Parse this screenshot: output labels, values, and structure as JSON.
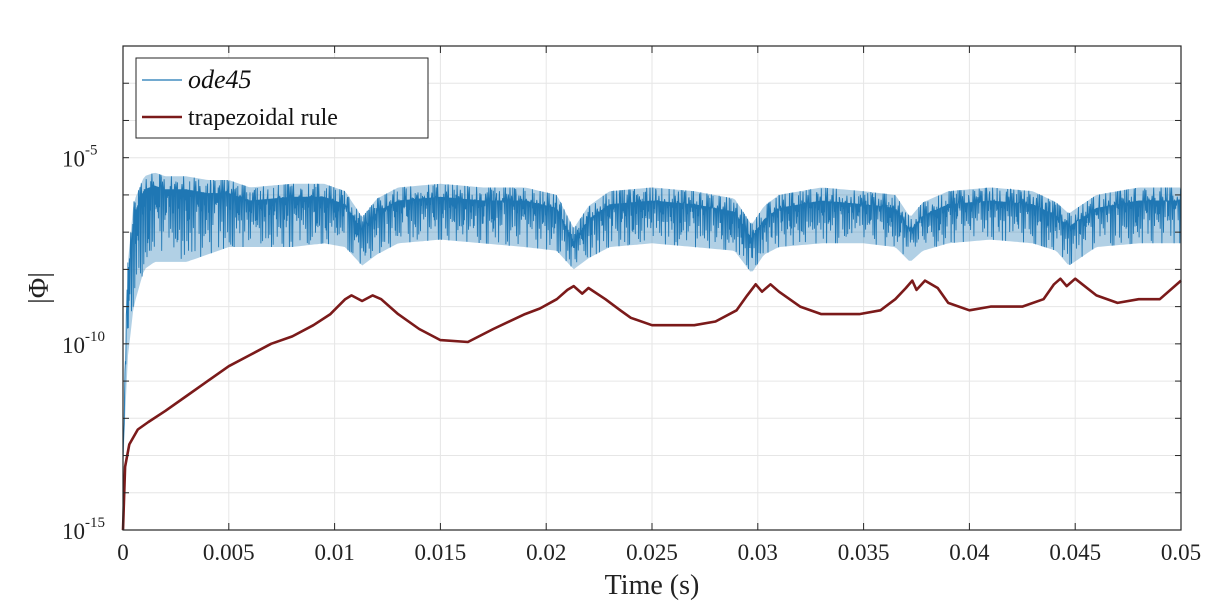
{
  "chart_data": {
    "type": "line",
    "title": "",
    "xlabel": "Time (s)",
    "ylabel": "|Φ|",
    "xlim": [
      0,
      0.05
    ],
    "ylim_log10": [
      -15,
      -2
    ],
    "yscale": "log",
    "grid": true,
    "legend_position": "top-left",
    "x_ticks": [
      0,
      0.005,
      0.01,
      0.015,
      0.02,
      0.025,
      0.03,
      0.035,
      0.04,
      0.045,
      0.05
    ],
    "x_tick_labels": [
      "0",
      "0.005",
      "0.01",
      "0.015",
      "0.02",
      "0.025",
      "0.03",
      "0.035",
      "0.04",
      "0.045",
      "0.05"
    ],
    "y_ticks": [
      {
        "base": "10",
        "exp": "-5",
        "value_log10": -5
      },
      {
        "base": "10",
        "exp": "-10",
        "value_log10": -10
      },
      {
        "base": "10",
        "exp": "-15",
        "value_log10": -15
      }
    ],
    "series": [
      {
        "name": "ode45",
        "color": "#1f77b4",
        "style": "oscillating",
        "envelope_x": [
          0,
          0.0002,
          0.0005,
          0.001,
          0.0015,
          0.002,
          0.003,
          0.004,
          0.005,
          0.006,
          0.008,
          0.0095,
          0.0105,
          0.0113,
          0.012,
          0.013,
          0.015,
          0.017,
          0.019,
          0.0205,
          0.0213,
          0.022,
          0.023,
          0.025,
          0.027,
          0.0289,
          0.0297,
          0.0303,
          0.031,
          0.033,
          0.035,
          0.0365,
          0.0372,
          0.0378,
          0.039,
          0.041,
          0.043,
          0.0441,
          0.0447,
          0.046,
          0.048,
          0.05
        ],
        "envelope_upper_log10": [
          -13,
          -8,
          -6.2,
          -5.5,
          -5.4,
          -5.5,
          -5.5,
          -5.6,
          -5.6,
          -5.8,
          -5.7,
          -5.7,
          -5.9,
          -6.6,
          -6.1,
          -5.8,
          -5.7,
          -5.8,
          -5.8,
          -6.0,
          -6.9,
          -6.3,
          -5.9,
          -5.8,
          -5.9,
          -6.1,
          -6.8,
          -6.3,
          -6.0,
          -5.8,
          -5.9,
          -6.0,
          -6.6,
          -6.2,
          -5.9,
          -5.8,
          -5.9,
          -6.2,
          -6.5,
          -6.0,
          -5.8,
          -5.8
        ],
        "envelope_lower_log10": [
          -13.5,
          -10.5,
          -9,
          -8,
          -7.8,
          -7.8,
          -7.8,
          -7.6,
          -7.4,
          -7.4,
          -7.4,
          -7.3,
          -7.4,
          -7.9,
          -7.6,
          -7.3,
          -7.2,
          -7.3,
          -7.4,
          -7.5,
          -8.0,
          -7.7,
          -7.4,
          -7.3,
          -7.4,
          -7.5,
          -8.1,
          -7.6,
          -7.4,
          -7.3,
          -7.3,
          -7.4,
          -7.8,
          -7.5,
          -7.3,
          -7.2,
          -7.3,
          -7.5,
          -7.9,
          -7.4,
          -7.3,
          -7.3
        ]
      },
      {
        "name": "trapezoidal rule",
        "color": "#7b1a1a",
        "style": "smooth",
        "x": [
          0,
          0.0001,
          0.0003,
          0.0007,
          0.0012,
          0.002,
          0.003,
          0.004,
          0.005,
          0.006,
          0.007,
          0.008,
          0.009,
          0.0098,
          0.0105,
          0.0108,
          0.0113,
          0.0118,
          0.0122,
          0.013,
          0.014,
          0.015,
          0.0163,
          0.0175,
          0.019,
          0.0197,
          0.0205,
          0.021,
          0.0213,
          0.0217,
          0.022,
          0.0228,
          0.0235,
          0.024,
          0.025,
          0.026,
          0.027,
          0.028,
          0.029,
          0.0295,
          0.0299,
          0.0302,
          0.0306,
          0.031,
          0.032,
          0.033,
          0.034,
          0.0348,
          0.0358,
          0.0365,
          0.037,
          0.0373,
          0.0375,
          0.0379,
          0.0385,
          0.039,
          0.04,
          0.041,
          0.0425,
          0.0435,
          0.044,
          0.0443,
          0.0446,
          0.045,
          0.046,
          0.047,
          0.048,
          0.049,
          0.05
        ],
        "y_log10": [
          -15,
          -13.3,
          -12.7,
          -12.3,
          -12.1,
          -11.8,
          -11.4,
          -11.0,
          -10.6,
          -10.3,
          -10.0,
          -9.8,
          -9.5,
          -9.2,
          -8.8,
          -8.7,
          -8.85,
          -8.7,
          -8.8,
          -9.2,
          -9.6,
          -9.9,
          -9.95,
          -9.6,
          -9.2,
          -9.05,
          -8.8,
          -8.55,
          -8.45,
          -8.65,
          -8.5,
          -8.8,
          -9.1,
          -9.3,
          -9.5,
          -9.5,
          -9.5,
          -9.4,
          -9.1,
          -8.7,
          -8.4,
          -8.6,
          -8.4,
          -8.6,
          -9.0,
          -9.2,
          -9.2,
          -9.2,
          -9.1,
          -8.8,
          -8.5,
          -8.3,
          -8.55,
          -8.3,
          -8.5,
          -8.9,
          -9.1,
          -9.0,
          -9.0,
          -8.8,
          -8.4,
          -8.25,
          -8.45,
          -8.25,
          -8.7,
          -8.9,
          -8.8,
          -8.8,
          -8.3
        ]
      }
    ]
  }
}
